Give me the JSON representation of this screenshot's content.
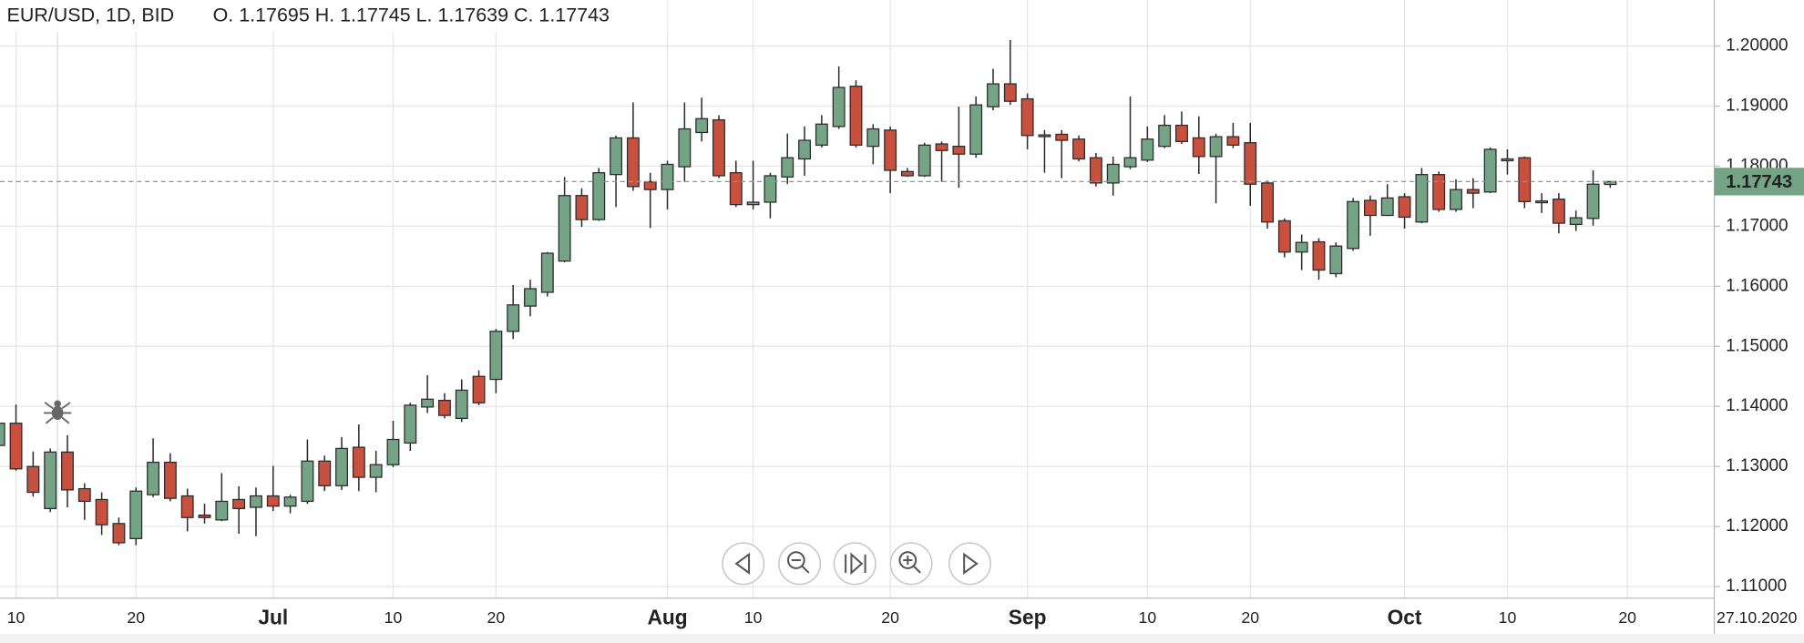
{
  "header": {
    "symbol": "EUR/USD, 1D, BID",
    "ohlc": "O. 1.17695 H. 1.17745 L. 1.17639 C. 1.17743"
  },
  "chart_data": {
    "type": "candlestick",
    "categories": [
      null,
      "10",
      null,
      null,
      null,
      null,
      null,
      null,
      "20",
      null,
      null,
      null,
      null,
      null,
      null,
      null,
      "Jul",
      null,
      null,
      null,
      null,
      null,
      null,
      "10",
      null,
      null,
      null,
      null,
      null,
      "20",
      null,
      null,
      null,
      null,
      null,
      null,
      null,
      null,
      null,
      "Aug",
      null,
      null,
      null,
      null,
      "10",
      null,
      null,
      null,
      null,
      null,
      null,
      null,
      "20",
      null,
      null,
      null,
      null,
      null,
      null,
      null,
      "Sep",
      null,
      null,
      null,
      null,
      null,
      null,
      "10",
      null,
      null,
      null,
      null,
      null,
      "20",
      null,
      null,
      null,
      null,
      null,
      null,
      null,
      null,
      "Oct",
      null,
      null,
      null,
      null,
      null,
      "10",
      null,
      null,
      null,
      null,
      null,
      null,
      "20"
    ],
    "open": [
      1.1335,
      1.1372,
      1.13,
      1.123,
      1.1324,
      1.1263,
      1.1245,
      1.1205,
      1.118,
      1.1253,
      1.1307,
      1.1251,
      1.1219,
      1.1211,
      1.1245,
      1.1232,
      1.1251,
      1.1234,
      1.1242,
      1.1309,
      1.1268,
      1.1332,
      1.1282,
      1.1303,
      1.1339,
      1.1399,
      1.141,
      1.138,
      1.145,
      1.1445,
      1.1525,
      1.1567,
      1.159,
      1.1642,
      1.1751,
      1.1711,
      1.1786,
      1.1847,
      1.1774,
      1.1761,
      1.1799,
      1.1856,
      1.1877,
      1.1789,
      1.1736,
      1.174,
      1.1782,
      1.1812,
      1.1835,
      1.1866,
      1.1933,
      1.1833,
      1.186,
      1.1791,
      1.1784,
      1.1837,
      1.1833,
      1.182,
      1.1899,
      1.1937,
      1.1912,
      1.1851,
      1.1853,
      1.1845,
      1.1814,
      1.1772,
      1.1799,
      1.181,
      1.1833,
      1.1868,
      1.1847,
      1.1816,
      1.1849,
      1.1839,
      1.1772,
      1.1709,
      1.1657,
      1.1674,
      1.1621,
      1.1663,
      1.1743,
      1.1718,
      1.1749,
      1.1707,
      1.1786,
      1.1728,
      1.1761,
      1.1757,
      1.1809,
      1.1814,
      1.1741,
      1.1745,
      1.1703,
      1.1713,
      1.17695,
      null
    ],
    "high": [
      1.1385,
      1.1403,
      1.1325,
      1.133,
      1.1352,
      1.1272,
      1.1257,
      1.1215,
      1.1265,
      1.1347,
      1.1322,
      1.1263,
      1.1238,
      1.1289,
      1.1267,
      1.1265,
      1.1301,
      1.1253,
      1.1345,
      1.1318,
      1.1349,
      1.137,
      1.1326,
      1.1376,
      1.1406,
      1.1452,
      1.1422,
      1.1445,
      1.146,
      1.1529,
      1.1602,
      1.1611,
      1.1657,
      1.1782,
      1.1763,
      1.1797,
      1.1851,
      1.1906,
      1.1789,
      1.1809,
      1.1906,
      1.1914,
      1.1885,
      1.1809,
      1.1809,
      1.1789,
      1.1854,
      1.1866,
      1.1885,
      1.1966,
      1.1943,
      1.187,
      1.1866,
      1.1797,
      1.1839,
      1.1841,
      1.1899,
      1.1916,
      1.1962,
      1.201,
      1.1921,
      1.186,
      1.186,
      1.1851,
      1.1822,
      1.1816,
      1.1916,
      1.1866,
      1.1885,
      1.1891,
      1.1883,
      1.1854,
      1.1872,
      1.1872,
      1.1776,
      1.1713,
      1.1686,
      1.168,
      1.1673,
      1.1747,
      1.1751,
      1.177,
      1.1755,
      1.1797,
      1.1791,
      1.1778,
      1.178,
      1.1831,
      1.1828,
      1.1816,
      1.1755,
      1.1755,
      1.1726,
      1.1793,
      1.17745,
      null
    ],
    "low": [
      1.133,
      1.1293,
      1.125,
      1.1224,
      1.1232,
      1.1211,
      1.1186,
      1.1169,
      1.1169,
      1.1249,
      1.1242,
      1.1192,
      1.1205,
      1.1209,
      1.1188,
      1.1184,
      1.1226,
      1.1222,
      1.1238,
      1.1259,
      1.1261,
      1.1259,
      1.1257,
      1.1299,
      1.1326,
      1.1389,
      1.138,
      1.1374,
      1.1402,
      1.1422,
      1.1512,
      1.155,
      1.1583,
      1.164,
      1.1699,
      1.1709,
      1.1732,
      1.1759,
      1.1697,
      1.1728,
      1.1774,
      1.1841,
      1.178,
      1.1732,
      1.1728,
      1.1713,
      1.177,
      1.1784,
      1.1831,
      1.1862,
      1.1831,
      1.1803,
      1.1755,
      1.1782,
      1.1782,
      1.1774,
      1.1764,
      1.1814,
      1.1893,
      1.1902,
      1.1828,
      1.1789,
      1.178,
      1.1808,
      1.1766,
      1.1751,
      1.1795,
      1.1807,
      1.183,
      1.1837,
      1.1787,
      1.1738,
      1.183,
      1.1734,
      1.1696,
      1.1648,
      1.1627,
      1.1611,
      1.1615,
      1.1659,
      1.1684,
      1.1717,
      1.1696,
      1.1705,
      1.1724,
      1.1724,
      1.173,
      1.1755,
      1.1786,
      1.173,
      1.1722,
      1.1688,
      1.1692,
      1.1701,
      1.17639,
      null
    ],
    "close": [
      1.1372,
      1.1296,
      1.1257,
      1.1324,
      1.1261,
      1.1242,
      1.1203,
      1.1173,
      1.1259,
      1.1307,
      1.1247,
      1.1215,
      1.1215,
      1.1242,
      1.123,
      1.1251,
      1.1234,
      1.1249,
      1.1309,
      1.1268,
      1.133,
      1.1282,
      1.1303,
      1.1345,
      1.1402,
      1.1412,
      1.1385,
      1.1427,
      1.1406,
      1.1525,
      1.1569,
      1.1596,
      1.1655,
      1.1751,
      1.1711,
      1.1789,
      1.1847,
      1.1766,
      1.1761,
      1.1803,
      1.1862,
      1.1879,
      1.1784,
      1.1736,
      1.174,
      1.1784,
      1.1814,
      1.1843,
      1.187,
      1.1931,
      1.1835,
      1.1862,
      1.1793,
      1.1784,
      1.1835,
      1.1826,
      1.182,
      1.1902,
      1.1937,
      1.1908,
      1.1851,
      1.1852,
      1.1843,
      1.1812,
      1.1772,
      1.1803,
      1.1814,
      1.1845,
      1.1868,
      1.1841,
      1.1816,
      1.1849,
      1.1835,
      1.177,
      1.1707,
      1.1657,
      1.1673,
      1.1627,
      1.1667,
      1.1741,
      1.1718,
      1.1747,
      1.1715,
      1.1786,
      1.1728,
      1.1761,
      1.1755,
      1.1828,
      1.1812,
      1.1741,
      1.1742,
      1.1705,
      1.1714,
      1.177,
      1.17743,
      null
    ],
    "up_color": "#74a385",
    "down_color": "#c8503f",
    "ylim": [
      1.10808,
      1.20766
    ],
    "yticks": [
      {
        "value": 1.11,
        "label": "1.11000"
      },
      {
        "value": 1.12,
        "label": "1.12000"
      },
      {
        "value": 1.13,
        "label": "1.13000"
      },
      {
        "value": 1.14,
        "label": "1.14000"
      },
      {
        "value": 1.15,
        "label": "1.15000"
      },
      {
        "value": 1.16,
        "label": "1.16000"
      },
      {
        "value": 1.17,
        "label": "1.17000"
      },
      {
        "value": 1.18,
        "label": "1.18000"
      },
      {
        "value": 1.19,
        "label": "1.19000"
      },
      {
        "value": 1.2,
        "label": "1.20000"
      }
    ],
    "grid": true,
    "last_price": {
      "value": 1.17743,
      "label": "1.17743"
    },
    "cursor_date": "27.10.2020"
  }
}
